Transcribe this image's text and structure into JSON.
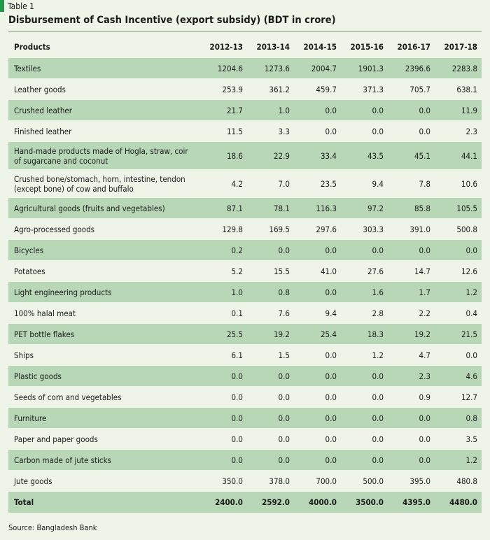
{
  "table_label": "Table 1",
  "title": "Disbursement of Cash Incentive (export subsidy) (BDT in crore)",
  "colors": {
    "accent": "#1f9a4b",
    "shade": "#b7d7b7",
    "background": "#eef4e8"
  },
  "columns": [
    "Products",
    "2012-13",
    "2013-14",
    "2014-15",
    "2015-16",
    "2016-17",
    "2017-18"
  ],
  "rows": [
    {
      "product": "Textiles",
      "values": [
        "1204.6",
        "1273.6",
        "2004.7",
        "1901.3",
        "2396.6",
        "2283.8"
      ]
    },
    {
      "product": "Leather goods",
      "values": [
        "253.9",
        "361.2",
        "459.7",
        "371.3",
        "705.7",
        "638.1"
      ]
    },
    {
      "product": "Crushed leather",
      "values": [
        "21.7",
        "1.0",
        "0.0",
        "0.0",
        "0.0",
        "11.9"
      ]
    },
    {
      "product": "Finished leather",
      "values": [
        "11.5",
        "3.3",
        "0.0",
        "0.0",
        "0.0",
        "2.3"
      ]
    },
    {
      "product": "Hand-made products made of Hogla, straw, coir of sugarcane and coconut",
      "values": [
        "18.6",
        "22.9",
        "33.4",
        "43.5",
        "45.1",
        "44.1"
      ]
    },
    {
      "product": "Crushed bone/stomach, horn, intestine, tendon (except bone) of cow and buffalo",
      "values": [
        "4.2",
        "7.0",
        "23.5",
        "9.4",
        "7.8",
        "10.6"
      ]
    },
    {
      "product": "Agricultural goods (fruits and vegetables)",
      "values": [
        "87.1",
        "78.1",
        "116.3",
        "97.2",
        "85.8",
        "105.5"
      ]
    },
    {
      "product": "Agro-processed goods",
      "values": [
        "129.8",
        "169.5",
        "297.6",
        "303.3",
        "391.0",
        "500.8"
      ]
    },
    {
      "product": "Bicycles",
      "values": [
        "0.2",
        "0.0",
        "0.0",
        "0.0",
        "0.0",
        "0.0"
      ]
    },
    {
      "product": "Potatoes",
      "values": [
        "5.2",
        "15.5",
        "41.0",
        "27.6",
        "14.7",
        "12.6"
      ]
    },
    {
      "product": "Light engineering products",
      "values": [
        "1.0",
        "0.8",
        "0.0",
        "1.6",
        "1.7",
        "1.2"
      ]
    },
    {
      "product": "100% halal meat",
      "values": [
        "0.1",
        "7.6",
        "9.4",
        "2.8",
        "2.2",
        "0.4"
      ]
    },
    {
      "product": "PET bottle flakes",
      "values": [
        "25.5",
        "19.2",
        "25.4",
        "18.3",
        "19.2",
        "21.5"
      ]
    },
    {
      "product": "Ships",
      "values": [
        "6.1",
        "1.5",
        "0.0",
        "1.2",
        "4.7",
        "0.0"
      ]
    },
    {
      "product": "Plastic goods",
      "values": [
        "0.0",
        "0.0",
        "0.0",
        "0.0",
        "2.3",
        "4.6"
      ]
    },
    {
      "product": "Seeds of corn and vegetables",
      "values": [
        "0.0",
        "0.0",
        "0.0",
        "0.0",
        "0.9",
        "12.7"
      ]
    },
    {
      "product": "Furniture",
      "values": [
        "0.0",
        "0.0",
        "0.0",
        "0.0",
        "0.0",
        "0.8"
      ]
    },
    {
      "product": "Paper and paper goods",
      "values": [
        "0.0",
        "0.0",
        "0.0",
        "0.0",
        "0.0",
        "3.5"
      ]
    },
    {
      "product": "Carbon made of jute sticks",
      "values": [
        "0.0",
        "0.0",
        "0.0",
        "0.0",
        "0.0",
        "1.2"
      ]
    },
    {
      "product": "Jute goods",
      "values": [
        "350.0",
        "378.0",
        "700.0",
        "500.0",
        "395.0",
        "480.8"
      ]
    }
  ],
  "total": {
    "label": "Total",
    "values": [
      "2400.0",
      "2592.0",
      "4000.0",
      "3500.0",
      "4395.0",
      "4480.0"
    ]
  },
  "source": "Source: Bangladesh Bank"
}
